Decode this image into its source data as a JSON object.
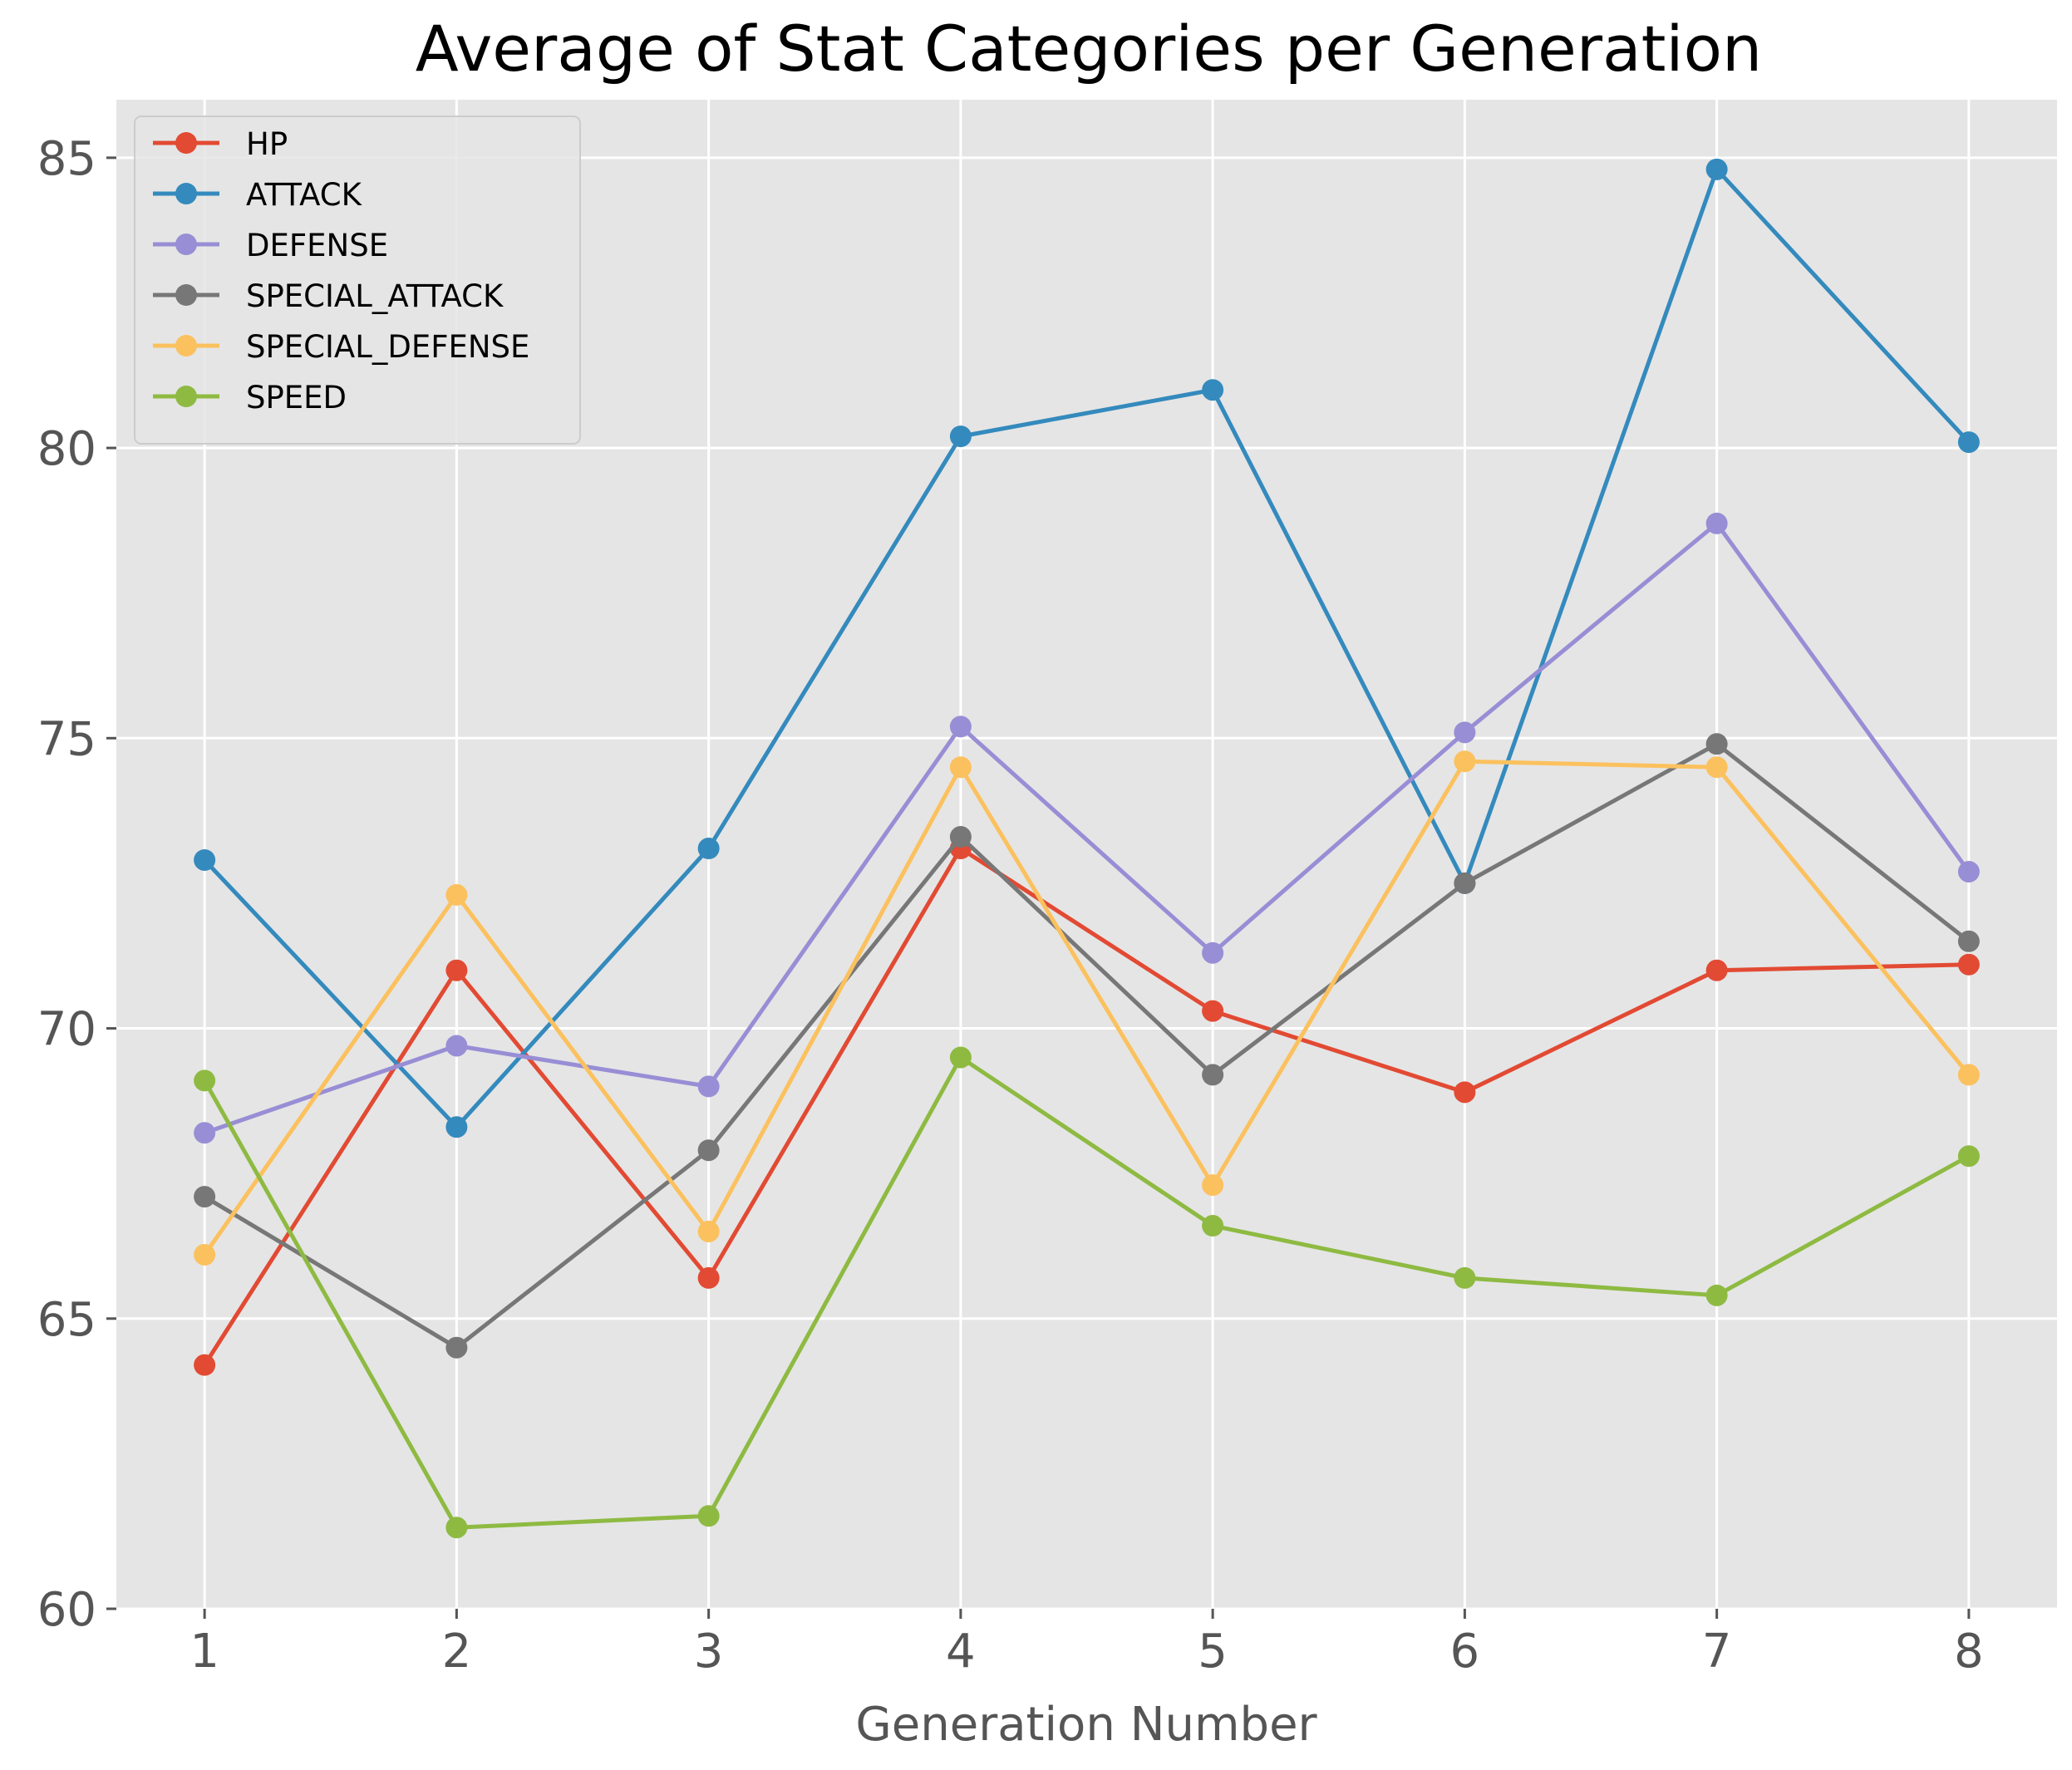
{
  "chart_data": {
    "type": "line",
    "title": "Average of Stat Categories per Generation",
    "xlabel": "Generation Number",
    "ylabel": "",
    "x": [
      1,
      2,
      3,
      4,
      5,
      6,
      7,
      8
    ],
    "xlim": [
      0.65,
      8.35
    ],
    "ylim": [
      60,
      86
    ],
    "yticks": [
      60,
      65,
      70,
      75,
      80,
      85
    ],
    "grid": true,
    "legend_position": "top-left",
    "colors": {
      "background": "#E5E5E5",
      "grid": "#FFFFFF",
      "tick_text": "#555555",
      "title_text": "#000000"
    },
    "series": [
      {
        "name": "HP",
        "color": "#E24A33",
        "values": [
          64.2,
          71.0,
          65.7,
          73.1,
          70.3,
          68.9,
          71.0,
          71.1
        ]
      },
      {
        "name": "ATTACK",
        "color": "#348ABD",
        "values": [
          72.9,
          68.3,
          73.1,
          80.2,
          81.0,
          72.5,
          84.8,
          80.1
        ]
      },
      {
        "name": "DEFENSE",
        "color": "#988ED5",
        "values": [
          68.2,
          69.7,
          69.0,
          75.2,
          71.3,
          75.1,
          78.7,
          72.7
        ]
      },
      {
        "name": "SPECIAL_ATTACK",
        "color": "#777777",
        "values": [
          67.1,
          64.5,
          67.9,
          73.3,
          69.2,
          72.5,
          74.9,
          71.5
        ]
      },
      {
        "name": "SPECIAL_DEFENSE",
        "color": "#FBC15E",
        "values": [
          66.1,
          72.3,
          66.5,
          74.5,
          67.3,
          74.6,
          74.5,
          69.2
        ]
      },
      {
        "name": "SPEED",
        "color": "#8EBA42",
        "values": [
          69.1,
          61.4,
          61.6,
          69.5,
          66.6,
          65.7,
          65.4,
          67.8
        ]
      }
    ]
  }
}
